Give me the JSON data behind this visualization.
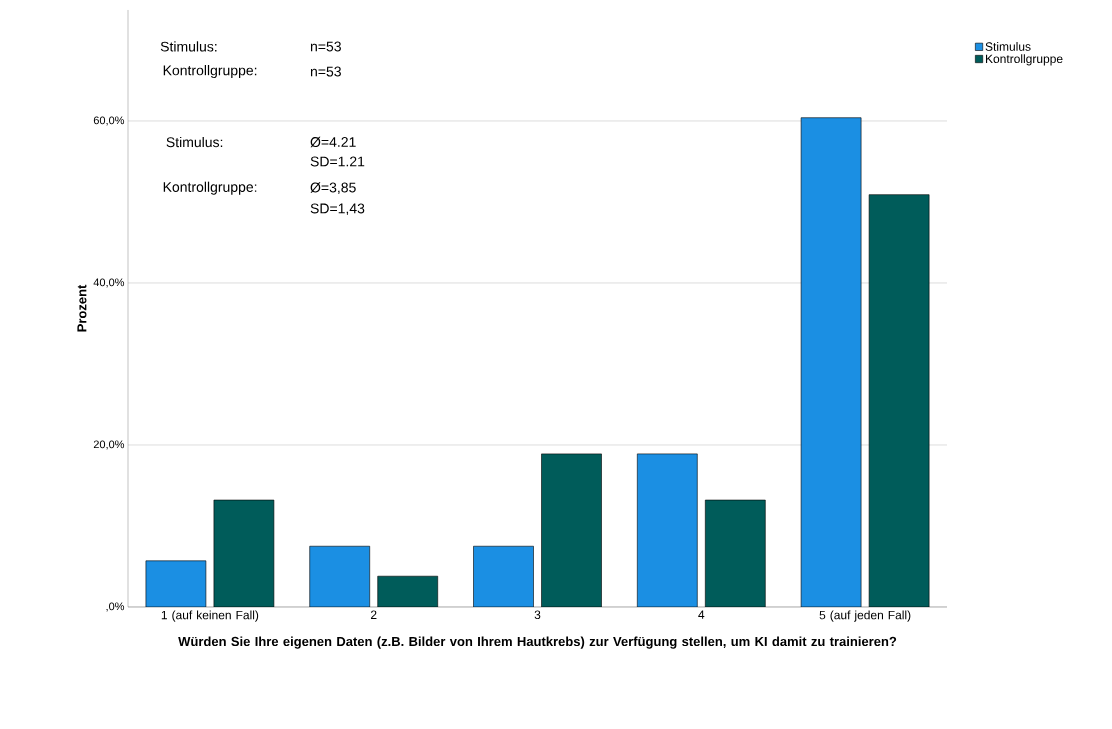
{
  "chart_data": {
    "type": "bar",
    "xlabel": "Würden Sie Ihre eigenen Daten (z.B. Bilder von Ihrem Hautkrebs) zur Verfügung stellen, um KI damit zu trainieren?",
    "ylabel": "Prozent",
    "categories": [
      "1 (auf keinen Fall)",
      "2",
      "3",
      "4",
      "5 (auf jeden Fall)"
    ],
    "series": [
      {
        "name": "Stimulus",
        "color": "#1b8fe3",
        "values": [
          5.7,
          7.5,
          7.5,
          18.9,
          60.4
        ]
      },
      {
        "name": "Kontrollgruppe",
        "color": "#005c5a",
        "values": [
          13.2,
          3.8,
          18.9,
          13.2,
          50.9
        ]
      }
    ],
    "ylim": [
      0,
      73.7
    ],
    "yticks": [
      {
        "value": 0,
        "label": ",0%"
      },
      {
        "value": 20,
        "label": "20,0%"
      },
      {
        "value": 40,
        "label": "40,0%"
      },
      {
        "value": 60,
        "label": "60,0%"
      }
    ],
    "grid": "y",
    "legend": "top right",
    "annotations": [
      "Stimulus:",
      "n=53",
      "Kontrollgruppe:",
      "n=53",
      "Stimulus:",
      "Ø=4.21",
      "SD=1.21",
      "Kontrollgruppe:",
      "Ø=3,85",
      "SD=1,43"
    ]
  }
}
